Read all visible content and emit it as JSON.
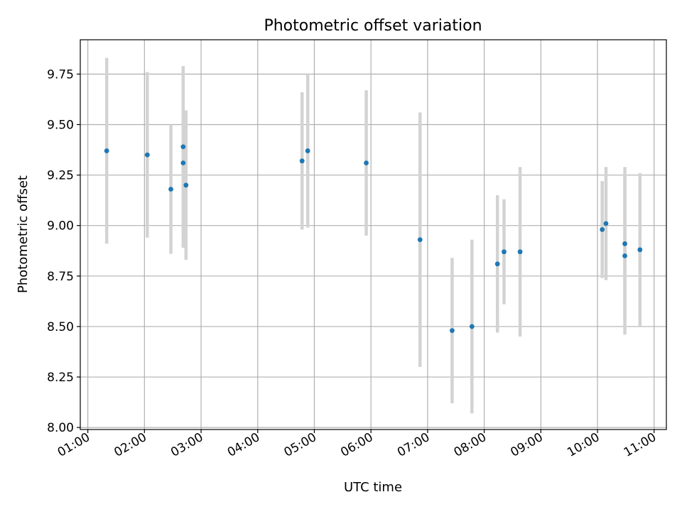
{
  "chart_data": {
    "type": "scatter",
    "title": "Photometric offset variation",
    "xlabel": "UTC time",
    "ylabel": "Photometric offset",
    "x_ticks": [
      "01:00",
      "02:00",
      "03:00",
      "04:00",
      "05:00",
      "06:00",
      "07:00",
      "08:00",
      "09:00",
      "10:00",
      "11:00"
    ],
    "y_ticks": [
      "8.00",
      "8.25",
      "8.50",
      "8.75",
      "9.00",
      "9.25",
      "9.50",
      "9.75"
    ],
    "xlim": [
      "00:52",
      "11:13"
    ],
    "ylim": [
      7.99,
      9.92
    ],
    "grid": true,
    "point_color": "#1f77b4",
    "errorbar_color": "#d3d3d3",
    "points": [
      {
        "x": "01:20",
        "y": 9.37,
        "err": 0.46
      },
      {
        "x": "02:03",
        "y": 9.35,
        "err": 0.41
      },
      {
        "x": "02:28",
        "y": 9.18,
        "err": 0.32
      },
      {
        "x": "02:41",
        "y": 9.39,
        "err": 0.4
      },
      {
        "x": "02:41",
        "y": 9.31,
        "err": 0.42
      },
      {
        "x": "02:44",
        "y": 9.2,
        "err": 0.37
      },
      {
        "x": "04:47",
        "y": 9.32,
        "err": 0.34
      },
      {
        "x": "04:53",
        "y": 9.37,
        "err": 0.38
      },
      {
        "x": "05:55",
        "y": 9.31,
        "err": 0.36
      },
      {
        "x": "06:52",
        "y": 8.93,
        "err": 0.63
      },
      {
        "x": "07:26",
        "y": 8.48,
        "err": 0.36
      },
      {
        "x": "07:47",
        "y": 8.5,
        "err": 0.43
      },
      {
        "x": "08:14",
        "y": 8.81,
        "err": 0.34
      },
      {
        "x": "08:21",
        "y": 8.87,
        "err": 0.26
      },
      {
        "x": "08:38",
        "y": 8.87,
        "err": 0.42
      },
      {
        "x": "10:05",
        "y": 8.98,
        "err": 0.24
      },
      {
        "x": "10:09",
        "y": 9.01,
        "err": 0.28
      },
      {
        "x": "10:29",
        "y": 8.91,
        "err": 0.38
      },
      {
        "x": "10:29",
        "y": 8.85,
        "err": 0.39
      },
      {
        "x": "10:45",
        "y": 8.88,
        "err": 0.38
      }
    ]
  }
}
